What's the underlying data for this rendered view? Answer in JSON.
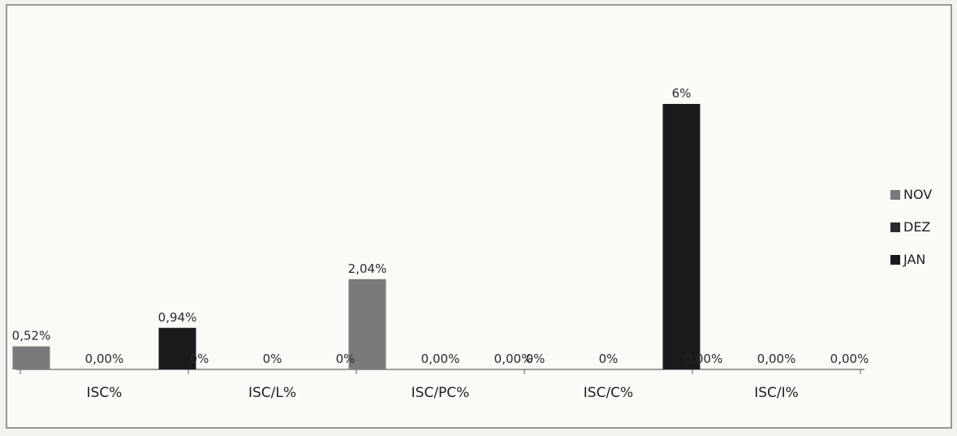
{
  "chart_data": {
    "type": "bar",
    "categories": [
      "ISC%",
      "ISC/L%",
      "ISC/PC%",
      "ISC/C%",
      "ISC/I%"
    ],
    "series": [
      {
        "name": "NOV",
        "values": [
          0.52,
          0,
          2.04,
          0,
          0
        ],
        "labels": [
          "0,52%",
          "0%",
          "2,04%",
          "0%",
          "0,00%"
        ],
        "color": "#7a7a7a"
      },
      {
        "name": "DEZ",
        "values": [
          0,
          0,
          0,
          0,
          0
        ],
        "labels": [
          "0,00%",
          "0%",
          "0,00%",
          "0%",
          "0,00%"
        ],
        "color": "#2b2b2b"
      },
      {
        "name": "JAN",
        "values": [
          0.94,
          0,
          0,
          6,
          0
        ],
        "labels": [
          "0,94%",
          "0%",
          "0,00%",
          "6%",
          "0,00%"
        ],
        "color": "#1a1a1a"
      }
    ],
    "title": "",
    "xlabel": "",
    "ylabel": "",
    "ylim": [
      0,
      6.6
    ],
    "grid": false,
    "legend_position": "right"
  }
}
